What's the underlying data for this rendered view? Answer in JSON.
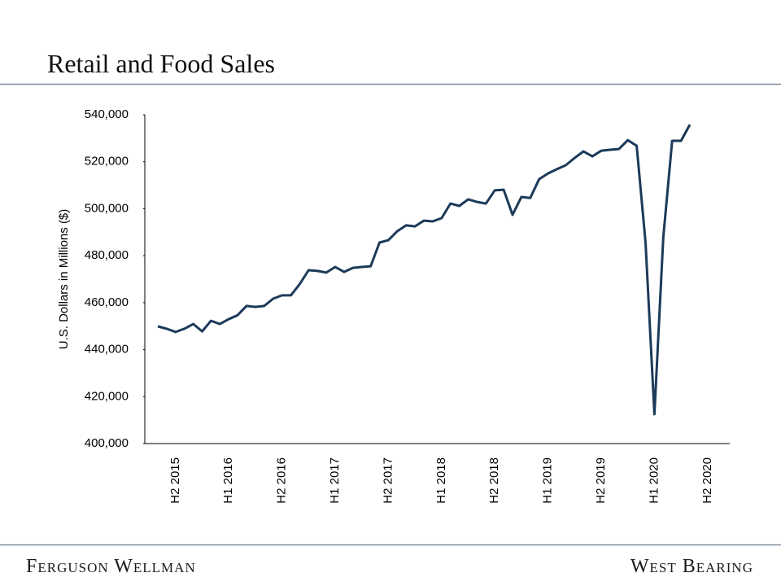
{
  "chart_data": {
    "type": "line",
    "title": "Retail and Food Sales",
    "y_label": "U.S. Dollars in Millions ($)",
    "footer_left": "Ferguson Wellman",
    "footer_right": "West Bearing",
    "categories": [
      null,
      null,
      "H2 2015",
      null,
      null,
      null,
      null,
      null,
      "H1 2016",
      null,
      null,
      null,
      null,
      null,
      "H2 2016",
      null,
      null,
      null,
      null,
      null,
      "H1 2017",
      null,
      null,
      null,
      null,
      null,
      "H2 2017",
      null,
      null,
      null,
      null,
      null,
      "H1 2018",
      null,
      null,
      null,
      null,
      null,
      "H2 2018",
      null,
      null,
      null,
      null,
      null,
      "H1 2019",
      null,
      null,
      null,
      null,
      null,
      "H2 2019",
      null,
      null,
      null,
      null,
      null,
      "H1 2020",
      null,
      null,
      null,
      null,
      null,
      "H2 2020"
    ],
    "series": [
      {
        "name": "Retail and Food Sales",
        "color": "#1c3a5a",
        "values": [
          449900,
          448900,
          447500,
          448900,
          450900,
          447800,
          452300,
          450900,
          453000,
          454700,
          458600,
          458200,
          458600,
          461700,
          463100,
          463100,
          467900,
          473800,
          473500,
          472800,
          475200,
          473100,
          474800,
          475200,
          475500,
          485600,
          486600,
          490400,
          492900,
          492500,
          494900,
          494600,
          496000,
          502200,
          501200,
          504000,
          502900,
          502200,
          507800,
          508100,
          497400,
          505000,
          504600,
          512600,
          515000,
          516800,
          518500,
          521600,
          524400,
          522300,
          524700,
          525100,
          525400,
          529200,
          526800,
          485600,
          412500,
          487700,
          528900,
          528900,
          535800,
          null,
          null
        ]
      }
    ],
    "ylim": [
      400000,
      540000
    ],
    "yticks": [
      {
        "value": 400000,
        "label": "400,000"
      },
      {
        "value": 420000,
        "label": "420,000"
      },
      {
        "value": 440000,
        "label": "440,000"
      },
      {
        "value": 460000,
        "label": "460,000"
      },
      {
        "value": 480000,
        "label": "480,000"
      },
      {
        "value": 500000,
        "label": "500,000"
      },
      {
        "value": 520000,
        "label": "520,000"
      },
      {
        "value": 540000,
        "label": "540,000"
      }
    ]
  }
}
